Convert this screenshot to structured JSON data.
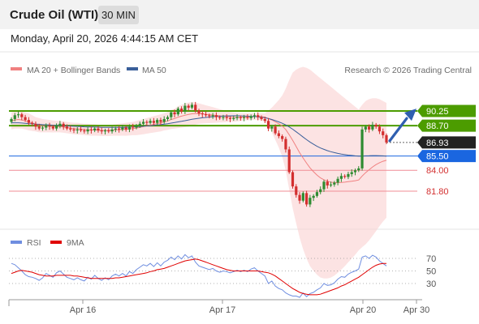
{
  "header": {
    "instrument": "Crude Oil (WTI)",
    "timeframe": "30 MIN",
    "datetime": "Monday, April 20, 2026 4:44:15 AM CET"
  },
  "legend": {
    "ma20": "MA 20 + Bollinger Bands",
    "ma50": "MA 50",
    "research": "Research © 2026 Trading Central",
    "rsi": "RSI",
    "ma9": "9MA"
  },
  "colors": {
    "bull": "#2e8b30",
    "bear": "#d32f2f",
    "boll": "#f9cccc",
    "ma20": "#f08080",
    "ma50": "#3a5f9a",
    "resistance": "#4c9c00",
    "support": "#f08c95",
    "pivot": "#1a66e0",
    "rsi": "#6f8ee0",
    "rsi_ma": "#e00000",
    "last": "#222222"
  },
  "chart_data": [
    {
      "type": "line",
      "title": "Crude Oil (WTI) 30 MIN",
      "x_ticks": [
        "Apr 16",
        "Apr 17",
        "Apr 20",
        "Apr 30"
      ],
      "price_levels": [
        {
          "label": "90.25",
          "value": 90.25,
          "kind": "resistance"
        },
        {
          "label": "88.70",
          "value": 88.7,
          "kind": "resistance"
        },
        {
          "label": "86.93",
          "value": 86.93,
          "kind": "last"
        },
        {
          "label": "85.50",
          "value": 85.5,
          "kind": "pivot"
        },
        {
          "label": "84.00",
          "value": 84.0,
          "kind": "support"
        },
        {
          "label": "81.80",
          "value": 81.8,
          "kind": "support"
        }
      ],
      "close": [
        89.4,
        89.8,
        89.9,
        89.6,
        89.3,
        89.0,
        88.9,
        88.6,
        88.4,
        88.5,
        88.7,
        88.6,
        88.4,
        88.7,
        88.9,
        88.6,
        88.4,
        88.3,
        88.2,
        88.3,
        88.2,
        88.1,
        88.3,
        88.2,
        88.4,
        88.2,
        88.1,
        88.2,
        88.1,
        88.3,
        88.4,
        88.3,
        88.5,
        88.3,
        88.6,
        88.5,
        88.7,
        88.9,
        89.1,
        89.0,
        89.2,
        89.0,
        89.3,
        89.1,
        89.4,
        89.6,
        90.1,
        89.9,
        90.5,
        90.2,
        90.8,
        90.6,
        90.9,
        90.3,
        90.0,
        89.9,
        89.8,
        89.7,
        89.8,
        89.6,
        89.5,
        89.6,
        89.5,
        89.4,
        89.5,
        89.6,
        89.5,
        89.6,
        89.5,
        89.7,
        89.8,
        89.6,
        89.4,
        89.2,
        88.4,
        88.6,
        87.9,
        87.6,
        87.3,
        86.2,
        83.8,
        82.3,
        81.4,
        80.8,
        81.6,
        80.4,
        81.1,
        81.3,
        81.7,
        82.0,
        82.8,
        82.4,
        82.5,
        82.7,
        83.1,
        83.4,
        83.3,
        83.6,
        83.8,
        84.0,
        84.2,
        88.3,
        88.6,
        88.3,
        88.8,
        88.6,
        88.1,
        87.7,
        86.93
      ],
      "ma20": [
        89.2,
        89.3,
        89.35,
        89.3,
        89.2,
        89.1,
        88.98,
        88.85,
        88.75,
        88.7,
        88.68,
        88.65,
        88.62,
        88.6,
        88.6,
        88.55,
        88.5,
        88.45,
        88.4,
        88.38,
        88.35,
        88.3,
        88.28,
        88.25,
        88.25,
        88.22,
        88.2,
        88.2,
        88.2,
        88.22,
        88.25,
        88.27,
        88.3,
        88.32,
        88.36,
        88.4,
        88.45,
        88.52,
        88.6,
        88.68,
        88.76,
        88.84,
        88.92,
        89.0,
        89.1,
        89.2,
        89.35,
        89.45,
        89.6,
        89.7,
        89.8,
        89.88,
        89.95,
        89.98,
        89.97,
        89.94,
        89.9,
        89.86,
        89.82,
        89.78,
        89.74,
        89.7,
        89.66,
        89.63,
        89.6,
        89.6,
        89.6,
        89.62,
        89.63,
        89.65,
        89.66,
        89.66,
        89.64,
        89.6,
        89.45,
        89.3,
        89.1,
        88.9,
        88.65,
        88.3,
        87.75,
        87.15,
        86.5,
        85.85,
        85.3,
        84.75,
        84.25,
        83.85,
        83.5,
        83.2,
        83.0,
        82.85,
        82.75,
        82.7,
        82.7,
        82.72,
        82.75,
        82.8,
        82.85,
        82.9,
        82.98,
        83.4,
        83.75,
        84.05,
        84.35,
        84.6,
        84.8,
        84.95,
        85.05
      ],
      "ma50": [
        89.0,
        89.0,
        89.0,
        88.98,
        88.95,
        88.92,
        88.9,
        88.87,
        88.84,
        88.81,
        88.79,
        88.77,
        88.75,
        88.73,
        88.72,
        88.7,
        88.68,
        88.66,
        88.64,
        88.62,
        88.6,
        88.58,
        88.57,
        88.56,
        88.55,
        88.54,
        88.53,
        88.52,
        88.52,
        88.52,
        88.52,
        88.52,
        88.53,
        88.54,
        88.55,
        88.57,
        88.59,
        88.61,
        88.64,
        88.67,
        88.7,
        88.73,
        88.77,
        88.81,
        88.86,
        88.91,
        88.97,
        89.03,
        89.1,
        89.16,
        89.23,
        89.3,
        89.37,
        89.43,
        89.48,
        89.53,
        89.57,
        89.61,
        89.64,
        89.67,
        89.69,
        89.71,
        89.73,
        89.74,
        89.75,
        89.75,
        89.74,
        89.72,
        89.7,
        89.68,
        89.66,
        89.63,
        89.59,
        89.54,
        89.45,
        89.35,
        89.23,
        89.1,
        88.95,
        88.78,
        88.57,
        88.33,
        88.06,
        87.78,
        87.5,
        87.23,
        86.97,
        86.74,
        86.53,
        86.35,
        86.2,
        86.07,
        85.96,
        85.86,
        85.78,
        85.71,
        85.65,
        85.6,
        85.56,
        85.52,
        85.49,
        85.5,
        85.52,
        85.53,
        85.55,
        85.55,
        85.54,
        85.52,
        85.5
      ],
      "bollinger_upper": [
        90.1,
        90.2,
        90.3,
        90.2,
        90.1,
        90.0,
        89.8,
        89.6,
        89.5,
        89.4,
        89.35,
        89.3,
        89.25,
        89.2,
        89.2,
        89.15,
        89.1,
        89.05,
        89.0,
        89.0,
        88.95,
        88.9,
        88.9,
        88.85,
        88.85,
        88.8,
        88.8,
        88.8,
        88.8,
        88.8,
        88.85,
        88.9,
        88.95,
        89.0,
        89.05,
        89.1,
        89.2,
        89.3,
        89.4,
        89.5,
        89.6,
        89.7,
        89.8,
        89.9,
        90.0,
        90.15,
        90.35,
        90.5,
        90.75,
        90.9,
        91.05,
        91.15,
        91.2,
        91.15,
        91.05,
        90.95,
        90.85,
        90.75,
        90.65,
        90.55,
        90.45,
        90.35,
        90.25,
        90.15,
        90.1,
        90.05,
        90.0,
        90.0,
        90.0,
        90.0,
        90.0,
        90.0,
        90.0,
        90.0,
        90.3,
        90.6,
        91.0,
        91.4,
        91.9,
        92.6,
        93.5,
        94.3,
        94.6,
        94.8,
        94.9,
        94.8,
        94.6,
        94.3,
        94.0,
        93.7,
        93.4,
        93.1,
        92.8,
        92.5,
        92.2,
        91.9,
        91.6,
        91.3,
        91.0,
        90.7,
        90.4,
        90.9,
        91.3,
        91.5,
        91.6,
        91.6,
        91.5,
        91.3,
        91.1
      ],
      "bollinger_lower": [
        88.3,
        88.4,
        88.4,
        88.4,
        88.3,
        88.2,
        88.15,
        88.1,
        88.0,
        88.0,
        88.0,
        88.0,
        87.99,
        88.0,
        88.0,
        87.95,
        87.9,
        87.85,
        87.8,
        87.76,
        87.75,
        87.7,
        87.66,
        87.65,
        87.65,
        87.64,
        87.6,
        87.6,
        87.6,
        87.64,
        87.65,
        87.64,
        87.65,
        87.64,
        87.67,
        87.7,
        87.7,
        87.74,
        87.8,
        87.86,
        87.92,
        87.98,
        88.04,
        88.1,
        88.2,
        88.25,
        88.35,
        88.4,
        88.45,
        88.5,
        88.55,
        88.61,
        88.7,
        88.81,
        88.89,
        88.93,
        88.95,
        88.97,
        88.99,
        89.01,
        89.03,
        89.05,
        89.07,
        89.11,
        89.1,
        89.15,
        89.2,
        89.24,
        89.26,
        89.3,
        89.32,
        89.32,
        89.28,
        89.2,
        88.6,
        88.0,
        87.2,
        86.4,
        85.4,
        84.0,
        82.0,
        80.0,
        78.4,
        76.9,
        75.7,
        74.7,
        73.9,
        73.4,
        73.0,
        72.7,
        72.6,
        72.6,
        72.7,
        72.9,
        73.2,
        73.54,
        73.9,
        74.3,
        74.7,
        75.1,
        75.56,
        75.9,
        76.2,
        76.6,
        77.1,
        77.6,
        78.1,
        78.6,
        79.0
      ],
      "rsi_ticks": [
        70,
        50,
        30
      ],
      "rsi": [
        62,
        60,
        55,
        50,
        44,
        41,
        40,
        38,
        35,
        39,
        46,
        43,
        40,
        47,
        50,
        45,
        40,
        38,
        36,
        39,
        36,
        34,
        40,
        37,
        43,
        38,
        35,
        39,
        36,
        42,
        45,
        42,
        46,
        42,
        49,
        46,
        52,
        56,
        60,
        58,
        62,
        57,
        63,
        58,
        64,
        67,
        72,
        68,
        74,
        69,
        76,
        71,
        74,
        64,
        58,
        56,
        54,
        52,
        54,
        50,
        48,
        50,
        49,
        47,
        49,
        51,
        49,
        51,
        49,
        53,
        55,
        50,
        46,
        42,
        30,
        34,
        26,
        22,
        20,
        15,
        12,
        10,
        10,
        8,
        15,
        9,
        14,
        16,
        20,
        23,
        30,
        27,
        28,
        31,
        37,
        41,
        40,
        45,
        48,
        50,
        53,
        72,
        74,
        70,
        75,
        72,
        66,
        62,
        58
      ],
      "rsi_ma": [
        46,
        48,
        50,
        51,
        50,
        49,
        48,
        46,
        44,
        43,
        42,
        42,
        42,
        43,
        43,
        43,
        43,
        43,
        42,
        42,
        41,
        40,
        39,
        38,
        38,
        38,
        38,
        38,
        38,
        38,
        39,
        39,
        40,
        41,
        42,
        43,
        44,
        45,
        46,
        47,
        49,
        50,
        52,
        53,
        54,
        56,
        58,
        60,
        62,
        64,
        66,
        67,
        68,
        69,
        68,
        66,
        64,
        62,
        60,
        58,
        56,
        54,
        52,
        51,
        50,
        50,
        50,
        50,
        50,
        50,
        50,
        50,
        49,
        48,
        47,
        45,
        42,
        38,
        34,
        30,
        26,
        22,
        19,
        16,
        14,
        13,
        12,
        12,
        12,
        13,
        15,
        17,
        19,
        21,
        23,
        26,
        28,
        31,
        34,
        37,
        40,
        44,
        48,
        52,
        56,
        59,
        61,
        62,
        62
      ]
    }
  ]
}
